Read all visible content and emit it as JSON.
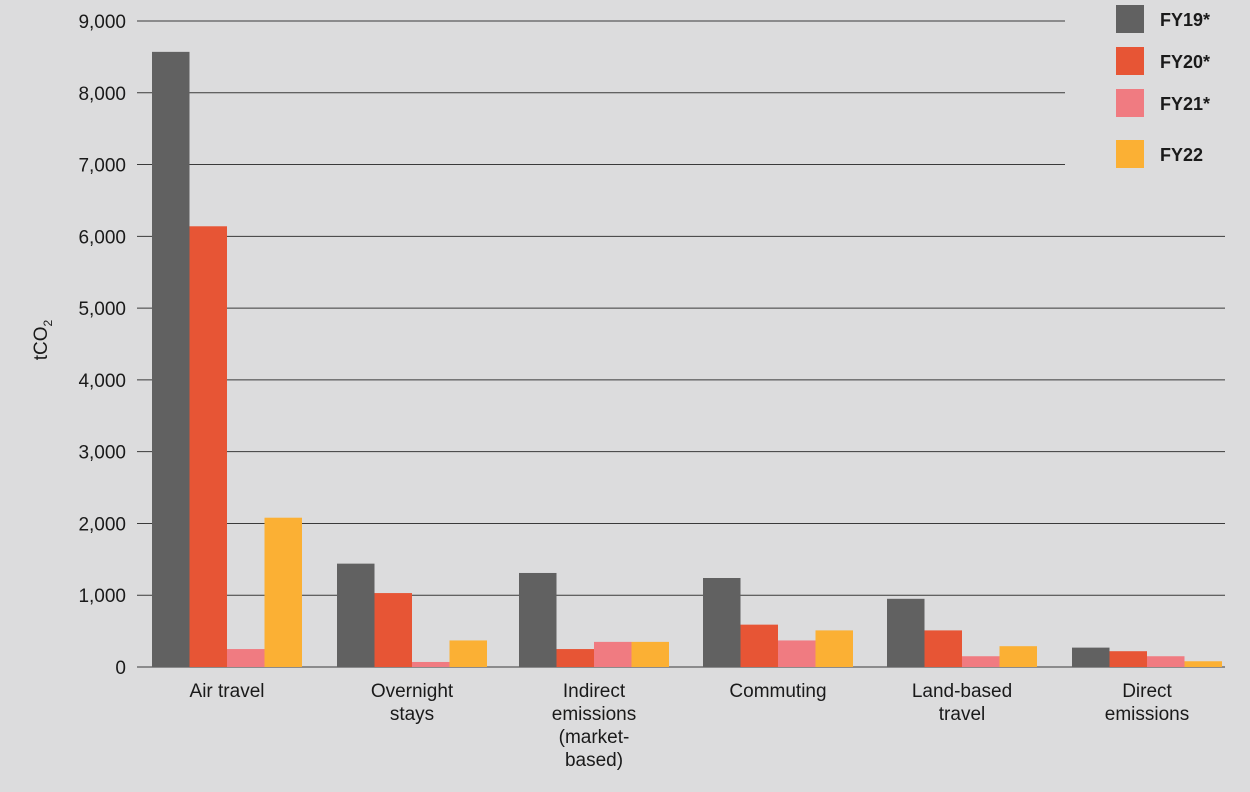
{
  "chart_data": {
    "type": "bar",
    "title": "",
    "ylabel": "tCO",
    "ylabel_sub": "2",
    "ylim": [
      0,
      9000
    ],
    "yticks": [
      "0",
      "1,000",
      "2,000",
      "3,000",
      "4,000",
      "5,000",
      "6,000",
      "7,000",
      "8,000",
      "9,000"
    ],
    "categories": [
      [
        "Air travel"
      ],
      [
        "Overnight",
        "stays"
      ],
      [
        "Indirect",
        "emissions",
        "(market-",
        "based)"
      ],
      [
        "Commuting"
      ],
      [
        "Land-based",
        "travel"
      ],
      [
        "Direct",
        "emissions"
      ]
    ],
    "series": [
      {
        "name": "FY19*",
        "color": "#616161",
        "values": [
          8570,
          1440,
          1310,
          1240,
          950,
          270
        ]
      },
      {
        "name": "FY20*",
        "color": "#e75535",
        "values": [
          6140,
          1030,
          250,
          590,
          510,
          220
        ]
      },
      {
        "name": "FY21*",
        "color": "#f07b81",
        "values": [
          250,
          70,
          350,
          370,
          150,
          150
        ]
      },
      {
        "name": "FY22",
        "color": "#fbb034",
        "values": [
          2080,
          370,
          350,
          510,
          290,
          80
        ]
      }
    ],
    "grid": true,
    "legend": "top-right"
  }
}
